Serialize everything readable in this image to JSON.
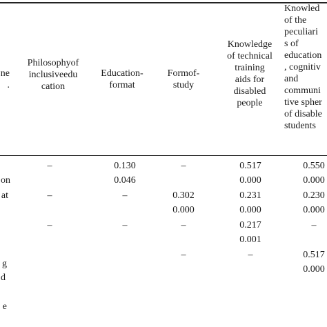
{
  "table": {
    "headers": [
      "ne\n.",
      "Philosophyof\ninclusiveedu\ncation",
      "Education-\nformat",
      "Formof-\nstudy",
      "Knowledge\nof technical\ntraining\naids for\ndisabled\npeople",
      "Knowled\nof the\npeculiari\ns of\neducation\n, cognitiv\nand\ncommuni\ntive spher\nof disable\nstudents"
    ],
    "row_labels": [
      "on",
      "at",
      "",
      "",
      "g",
      "d",
      "",
      "e"
    ],
    "rows": [
      [
        "–",
        "0.130",
        "–",
        "0.517",
        "0.550"
      ],
      [
        "",
        "0.046",
        "",
        "0.000",
        "0.000"
      ],
      [
        "–",
        "–",
        "0.302",
        "0.231",
        "0.230"
      ],
      [
        "",
        "",
        "0.000",
        "0.000",
        "0.000"
      ],
      [
        "–",
        "–",
        "–",
        "0.217",
        "–"
      ],
      [
        "",
        "",
        "",
        "0.001",
        ""
      ],
      [
        "",
        "",
        "–",
        "–",
        "0.517"
      ],
      [
        "",
        "",
        "",
        "",
        "0.000"
      ]
    ]
  }
}
